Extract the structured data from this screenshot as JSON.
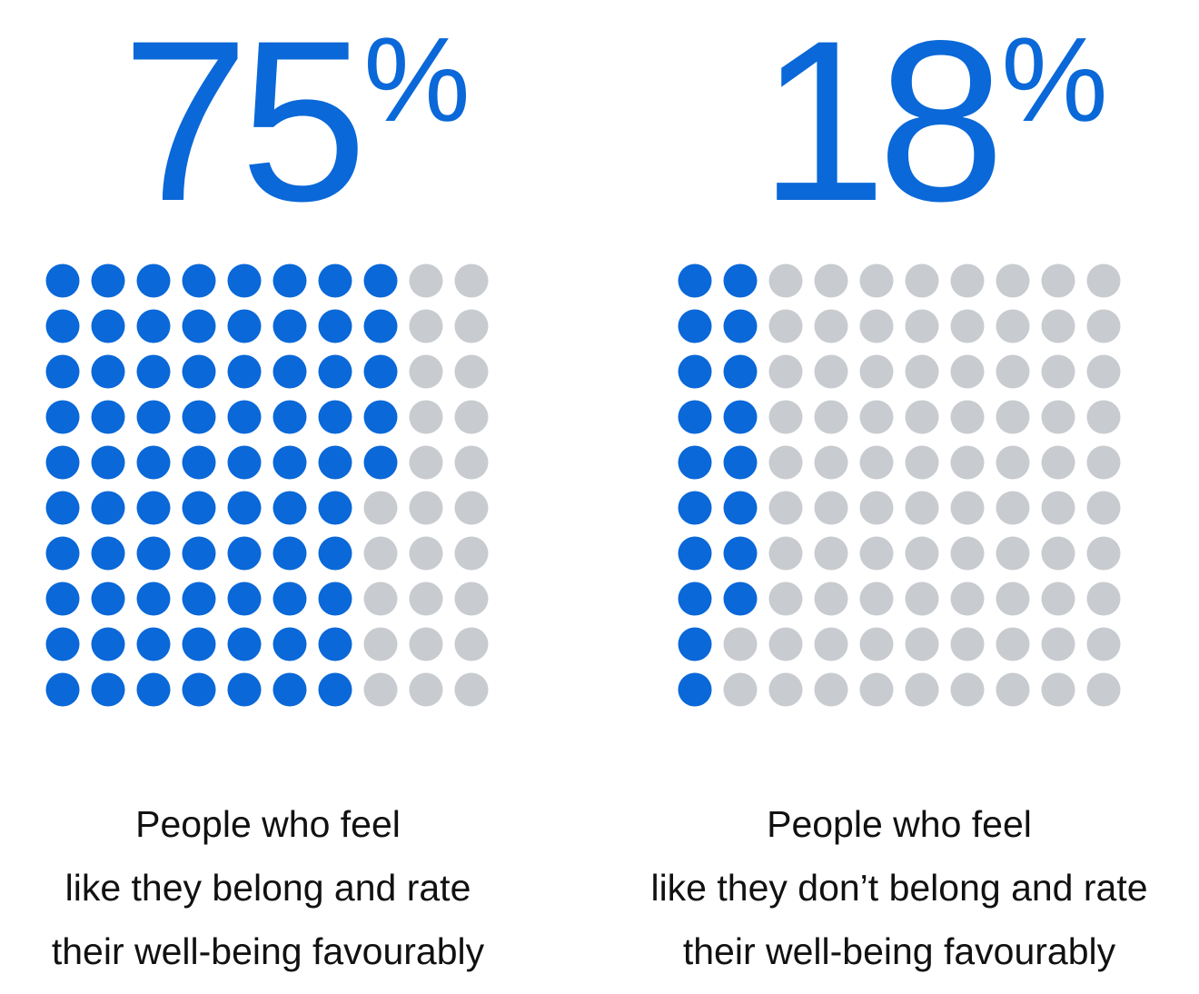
{
  "colors": {
    "accent": "#0a68d8",
    "inactive": "#c8cbcf",
    "text": "#111111"
  },
  "chart_data": [
    {
      "type": "waffle",
      "value_label": "75",
      "unit": "%",
      "value": 75,
      "total": 100,
      "grid": {
        "rows": 10,
        "cols": 10
      },
      "filled_per_row": [
        8,
        8,
        8,
        8,
        8,
        7,
        7,
        7,
        7,
        7
      ],
      "caption": [
        "People who feel",
        "like they belong and rate",
        "their well-being favourably"
      ]
    },
    {
      "type": "waffle",
      "value_label": "18",
      "unit": "%",
      "value": 18,
      "total": 100,
      "grid": {
        "rows": 10,
        "cols": 10
      },
      "filled_per_row": [
        2,
        2,
        2,
        2,
        2,
        2,
        2,
        2,
        1,
        1
      ],
      "caption": [
        "People who feel",
        "like they don’t belong and rate",
        "their well-being favourably"
      ]
    }
  ]
}
